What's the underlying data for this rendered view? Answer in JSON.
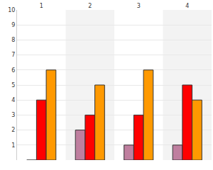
{
  "chart_data": {
    "type": "bar",
    "categories": [
      "1",
      "2",
      "3",
      "4"
    ],
    "series": [
      {
        "color": "#bf7f9f",
        "values": [
          0,
          2,
          1,
          1
        ]
      },
      {
        "color": "#ff0000",
        "values": [
          4,
          3,
          3,
          5
        ]
      },
      {
        "color": "#ff9900",
        "values": [
          6,
          5,
          6,
          4
        ]
      }
    ],
    "ylim": [
      0,
      10
    ],
    "yticks": [
      1,
      2,
      3,
      4,
      5,
      6,
      7,
      8,
      9,
      10
    ],
    "grid": true
  }
}
